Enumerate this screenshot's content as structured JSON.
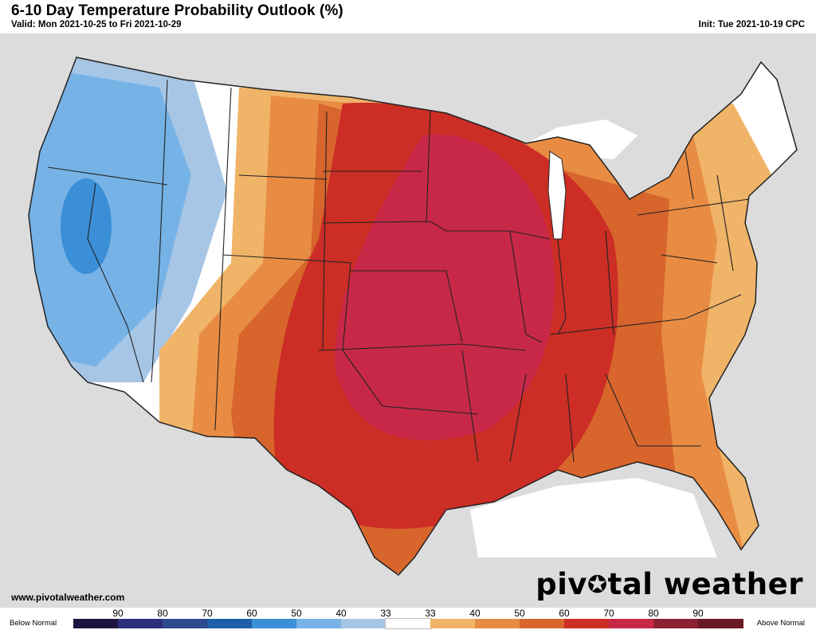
{
  "header": {
    "title": "6-10 Day Temperature Probability Outlook (%)",
    "valid": "Valid: Mon 2021-10-25 to Fri 2021-10-29",
    "init": "Init: Tue 2021-10-19 CPC"
  },
  "footer": {
    "website": "www.pivotalweather.com",
    "brand_pre": "piv",
    "brand_gear": "✪",
    "brand_post": "tal weather"
  },
  "legend": {
    "below_label": "Below Normal",
    "above_label": "Above Normal",
    "ticks": [
      "90",
      "80",
      "70",
      "60",
      "50",
      "40",
      "33",
      "33",
      "40",
      "50",
      "60",
      "70",
      "80",
      "90"
    ],
    "colors": [
      "#1c1440",
      "#2b2e7a",
      "#2e4a8f",
      "#1d5fa6",
      "#3a8fd6",
      "#76b2e6",
      "#a7c6e6",
      "#ffffff",
      "#f0b468",
      "#e88c44",
      "#d8652c",
      "#cc2d25",
      "#c82848",
      "#8b2232",
      "#6a1a22"
    ]
  },
  "map": {
    "land_color": "#ffffff",
    "background_color": "#dcdcdc",
    "water_color": "#ffffff",
    "border_color": "#222222"
  }
}
